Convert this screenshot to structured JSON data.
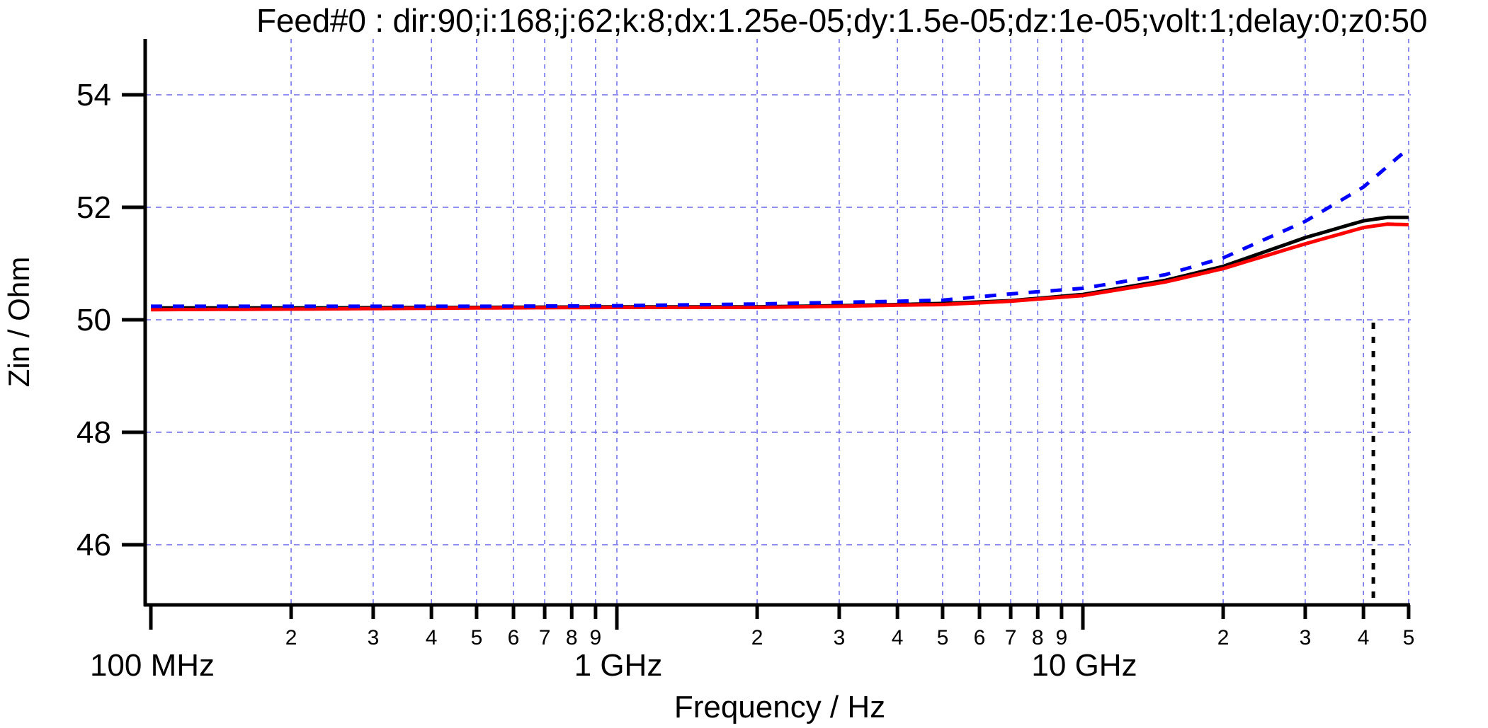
{
  "title": "Feed#0 : dir:90;i:168;j:62;k:8;dx:1.25e-05;dy:1.5e-05;dz:1e-05;volt:1;delay:0;z0:50",
  "colors": {
    "grid": "#6a6aee",
    "axis": "#000000",
    "series_black": "#000000",
    "series_red": "#ff0000",
    "series_blue": "#0000ff"
  },
  "chart_data": {
    "type": "line",
    "title": "Feed#0 : dir:90;i:168;j:62;k:8;dx:1.25e-05;dy:1.5e-05;dz:1e-05;volt:1;delay:0;z0:50",
    "xlabel": "Frequency / Hz",
    "ylabel": "Zin / Ohm",
    "xscale": "log",
    "xlim_ghz": [
      0.1,
      50
    ],
    "ylim": [
      44.93,
      55.0
    ],
    "grid": true,
    "x_major_ticks": [
      {
        "value_ghz": 0.1,
        "label": "100 MHz"
      },
      {
        "value_ghz": 1,
        "label": "1 GHz"
      },
      {
        "value_ghz": 10,
        "label": "10 GHz"
      }
    ],
    "x_minor_ticks": [
      {
        "value_ghz": 0.2,
        "label": "2"
      },
      {
        "value_ghz": 0.3,
        "label": "3"
      },
      {
        "value_ghz": 0.4,
        "label": "4"
      },
      {
        "value_ghz": 0.5,
        "label": "5"
      },
      {
        "value_ghz": 0.6,
        "label": "6"
      },
      {
        "value_ghz": 0.7,
        "label": "7"
      },
      {
        "value_ghz": 0.8,
        "label": "8"
      },
      {
        "value_ghz": 0.9,
        "label": "9"
      },
      {
        "value_ghz": 2,
        "label": "2"
      },
      {
        "value_ghz": 3,
        "label": "3"
      },
      {
        "value_ghz": 4,
        "label": "4"
      },
      {
        "value_ghz": 5,
        "label": "5"
      },
      {
        "value_ghz": 6,
        "label": "6"
      },
      {
        "value_ghz": 7,
        "label": "7"
      },
      {
        "value_ghz": 8,
        "label": "8"
      },
      {
        "value_ghz": 9,
        "label": "9"
      },
      {
        "value_ghz": 20,
        "label": "2"
      },
      {
        "value_ghz": 30,
        "label": "3"
      },
      {
        "value_ghz": 40,
        "label": "4"
      },
      {
        "value_ghz": 50,
        "label": "5"
      }
    ],
    "y_ticks": [
      46,
      48,
      50,
      52,
      54
    ],
    "series": [
      {
        "name": "black",
        "color": "#000000",
        "style": "solid",
        "x_ghz": [
          0.1,
          0.2,
          0.5,
          1,
          2,
          3,
          4,
          5,
          7,
          10,
          15,
          20,
          30,
          40,
          45,
          50
        ],
        "values": [
          50.21,
          50.21,
          50.22,
          50.23,
          50.23,
          50.25,
          50.27,
          50.29,
          50.34,
          50.45,
          50.7,
          50.95,
          51.46,
          51.76,
          51.82,
          51.82
        ]
      },
      {
        "name": "red",
        "color": "#ff0000",
        "style": "solid",
        "x_ghz": [
          0.1,
          0.2,
          0.5,
          1,
          2,
          3,
          4,
          5,
          7,
          10,
          15,
          20,
          30,
          40,
          45,
          50
        ],
        "values": [
          50.18,
          50.19,
          50.21,
          50.22,
          50.22,
          50.24,
          50.26,
          50.27,
          50.33,
          50.43,
          50.67,
          50.91,
          51.35,
          51.64,
          51.7,
          51.69
        ]
      },
      {
        "name": "blue",
        "color": "#0000ff",
        "style": "dashed",
        "x_ghz": [
          0.1,
          0.2,
          0.5,
          1,
          2,
          3,
          4,
          5,
          7,
          10,
          15,
          20,
          30,
          40,
          50
        ],
        "values": [
          50.24,
          50.24,
          50.24,
          50.25,
          50.28,
          50.31,
          50.33,
          50.35,
          50.46,
          50.56,
          50.8,
          51.1,
          51.75,
          52.36,
          53.05
        ]
      }
    ],
    "annotations": [
      {
        "type": "vertical-dotted-line",
        "x_ghz": 42,
        "y_from": 50,
        "y_to": 44.93,
        "color": "#000000"
      }
    ]
  }
}
